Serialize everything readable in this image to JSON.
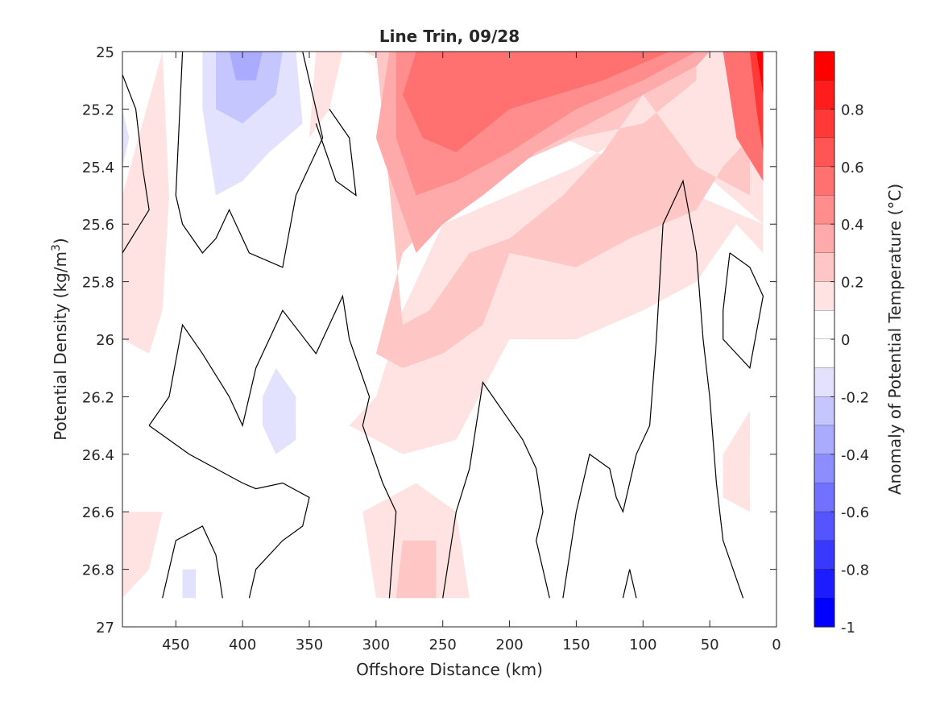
{
  "chart_data": {
    "type": "contour",
    "title": "Line Trin, 09/28",
    "xlabel": "Offshore Distance (km)",
    "ylabel": "Potential Density (kg/m",
    "ylabel_sup": "3",
    "ylabel_end": ")",
    "colorbar_label": "Anomaly of Potential Temperature (°C)",
    "x_direction": "reversed",
    "xlim": [
      0,
      490
    ],
    "ylim": [
      25,
      27
    ],
    "y_direction": "reversed",
    "x_ticks": [
      450,
      400,
      350,
      300,
      250,
      200,
      150,
      100,
      50,
      0
    ],
    "x_tick_labels": [
      "450",
      "400",
      "350",
      "300",
      "250",
      "200",
      "150",
      "100",
      "50",
      "0"
    ],
    "y_ticks": [
      25,
      25.2,
      25.4,
      25.6,
      25.8,
      26,
      26.2,
      26.4,
      26.6,
      26.8,
      27
    ],
    "y_tick_labels": [
      "25",
      "25.2",
      "25.4",
      "25.6",
      "25.8",
      "26",
      "26.2",
      "26.4",
      "26.6",
      "26.8",
      "27"
    ],
    "colorbar_range": [
      -1,
      1
    ],
    "colorbar_ticks": [
      0.8,
      0.6,
      0.4,
      0.2,
      0,
      -0.2,
      -0.4,
      -0.6,
      -0.8,
      -1
    ],
    "colorbar_tick_labels": [
      "0.8",
      "0.6",
      "0.4",
      "0.2",
      "0",
      "-0.2",
      "-0.4",
      "-0.6",
      "-0.8",
      "-1"
    ],
    "levels": [
      {
        "range": [
          0.9,
          1.0
        ],
        "color": "#ff0000"
      },
      {
        "range": [
          0.8,
          0.9
        ],
        "color": "#ff1c1c"
      },
      {
        "range": [
          0.7,
          0.8
        ],
        "color": "#ff3838"
      },
      {
        "range": [
          0.6,
          0.7
        ],
        "color": "#ff5555"
      },
      {
        "range": [
          0.5,
          0.6
        ],
        "color": "#ff7171"
      },
      {
        "range": [
          0.4,
          0.5
        ],
        "color": "#ff8d8d"
      },
      {
        "range": [
          0.3,
          0.4
        ],
        "color": "#ffaaaa"
      },
      {
        "range": [
          0.2,
          0.3
        ],
        "color": "#ffc6c6"
      },
      {
        "range": [
          0.1,
          0.2
        ],
        "color": "#ffe2e2"
      },
      {
        "range": [
          0.0,
          0.1
        ],
        "color": "#ffffff"
      },
      {
        "range": [
          -0.1,
          0.0
        ],
        "color": "#ffffff"
      },
      {
        "range": [
          -0.2,
          -0.1
        ],
        "color": "#e2e2ff"
      },
      {
        "range": [
          -0.3,
          -0.2
        ],
        "color": "#c6c6ff"
      },
      {
        "range": [
          -0.4,
          -0.3
        ],
        "color": "#aaaaff"
      },
      {
        "range": [
          -0.5,
          -0.4
        ],
        "color": "#8d8dff"
      },
      {
        "range": [
          -0.6,
          -0.5
        ],
        "color": "#7171ff"
      },
      {
        "range": [
          -0.7,
          -0.6
        ],
        "color": "#5555ff"
      },
      {
        "range": [
          -0.8,
          -0.7
        ],
        "color": "#3838ff"
      },
      {
        "range": [
          -0.9,
          -0.8
        ],
        "color": "#1c1cff"
      },
      {
        "range": [
          -1.0,
          -0.9
        ],
        "color": "#0000ff"
      }
    ],
    "filled_regions": [
      {
        "level": 0.15,
        "points": [
          [
            310,
            25
          ],
          [
            10,
            25
          ],
          [
            10,
            25.6
          ],
          [
            60,
            25.4
          ],
          [
            100,
            25.25
          ],
          [
            150,
            25.4
          ],
          [
            200,
            25.5
          ],
          [
            250,
            25.6
          ],
          [
            280,
            25.9
          ],
          [
            300,
            26.2
          ],
          [
            320,
            26.3
          ],
          [
            280,
            26.4
          ],
          [
            240,
            26.35
          ],
          [
            200,
            26
          ],
          [
            150,
            26
          ],
          [
            100,
            25.9
          ],
          [
            60,
            25.8
          ],
          [
            30,
            25.6
          ],
          [
            10,
            25.7
          ],
          [
            10,
            25.6
          ]
        ]
      },
      {
        "level": 0.15,
        "points": [
          [
            490,
            26.6
          ],
          [
            490,
            26.9
          ],
          [
            470,
            26.8
          ],
          [
            460,
            26.6
          ]
        ]
      },
      {
        "level": 0.15,
        "points": [
          [
            460,
            25
          ],
          [
            490,
            25.5
          ],
          [
            490,
            26
          ],
          [
            470,
            26.05
          ],
          [
            460,
            25.9
          ],
          [
            455,
            25.5
          ]
        ]
      },
      {
        "level": 0.15,
        "points": [
          [
            270,
            26.5
          ],
          [
            240,
            26.6
          ],
          [
            230,
            26.9
          ],
          [
            300,
            26.9
          ],
          [
            310,
            26.6
          ]
        ]
      },
      {
        "level": 0.15,
        "points": [
          [
            40,
            26.4
          ],
          [
            20,
            26.25
          ],
          [
            20,
            26.6
          ],
          [
            40,
            26.55
          ]
        ]
      },
      {
        "level": 0.15,
        "points": [
          [
            345,
            25
          ],
          [
            325,
            25
          ],
          [
            335,
            25.2
          ],
          [
            350,
            25.3
          ]
        ]
      },
      {
        "level": 0.25,
        "points": [
          [
            300,
            25
          ],
          [
            60,
            25
          ],
          [
            60,
            25.1
          ],
          [
            100,
            25.25
          ],
          [
            150,
            25.3
          ],
          [
            200,
            25.4
          ],
          [
            240,
            25.5
          ],
          [
            280,
            25.7
          ],
          [
            300,
            26.05
          ],
          [
            280,
            26.1
          ],
          [
            250,
            26.05
          ],
          [
            220,
            25.95
          ],
          [
            200,
            25.7
          ],
          [
            150,
            25.75
          ],
          [
            110,
            25.65
          ],
          [
            60,
            25.55
          ],
          [
            40,
            25.4
          ],
          [
            20,
            25.3
          ],
          [
            20,
            25.5
          ],
          [
            60,
            25.4
          ],
          [
            100,
            25.15
          ],
          [
            130,
            25.35
          ],
          [
            160,
            25.5
          ],
          [
            200,
            25.65
          ],
          [
            230,
            25.7
          ],
          [
            260,
            25.9
          ],
          [
            280,
            25.95
          ]
        ]
      },
      {
        "level": 0.25,
        "points": [
          [
            280,
            26.7
          ],
          [
            255,
            26.7
          ],
          [
            255,
            26.9
          ],
          [
            285,
            26.9
          ]
        ]
      },
      {
        "level": 0.35,
        "points": [
          [
            290,
            25
          ],
          [
            50,
            25
          ],
          [
            60,
            25.05
          ],
          [
            100,
            25.15
          ],
          [
            140,
            25.25
          ],
          [
            180,
            25.35
          ],
          [
            220,
            25.5
          ],
          [
            250,
            25.6
          ],
          [
            270,
            25.7
          ],
          [
            285,
            25.5
          ],
          [
            300,
            25.3
          ]
        ]
      },
      {
        "level": 0.45,
        "points": [
          [
            285,
            25
          ],
          [
            60,
            25
          ],
          [
            100,
            25.1
          ],
          [
            150,
            25.2
          ],
          [
            200,
            25.35
          ],
          [
            240,
            25.45
          ],
          [
            270,
            25.5
          ],
          [
            285,
            25.3
          ]
        ]
      },
      {
        "level": 0.55,
        "points": [
          [
            270,
            25
          ],
          [
            80,
            25
          ],
          [
            130,
            25.1
          ],
          [
            200,
            25.2
          ],
          [
            240,
            25.35
          ],
          [
            265,
            25.3
          ],
          [
            280,
            25.15
          ]
        ]
      },
      {
        "level": 0.55,
        "points": [
          [
            40,
            25
          ],
          [
            10,
            25
          ],
          [
            10,
            25.45
          ],
          [
            30,
            25.3
          ]
        ]
      },
      {
        "level": 0.75,
        "points": [
          [
            20,
            25
          ],
          [
            10,
            25
          ],
          [
            10,
            25.35
          ],
          [
            15,
            25.2
          ]
        ]
      },
      {
        "level": 0.95,
        "points": [
          [
            15,
            25
          ],
          [
            10,
            25
          ],
          [
            10,
            25.15
          ]
        ]
      },
      {
        "level": -0.15,
        "points": [
          [
            430,
            25
          ],
          [
            360,
            25
          ],
          [
            355,
            25.25
          ],
          [
            380,
            25.35
          ],
          [
            400,
            25.45
          ],
          [
            420,
            25.5
          ],
          [
            430,
            25.2
          ]
        ]
      },
      {
        "level": -0.15,
        "points": [
          [
            375,
            26.1
          ],
          [
            360,
            26.2
          ],
          [
            360,
            26.35
          ],
          [
            375,
            26.4
          ],
          [
            385,
            26.3
          ],
          [
            385,
            26.2
          ]
        ]
      },
      {
        "level": -0.15,
        "points": [
          [
            445,
            26.8
          ],
          [
            435,
            26.8
          ],
          [
            435,
            26.9
          ],
          [
            445,
            26.9
          ]
        ]
      },
      {
        "level": -0.15,
        "points": [
          [
            490,
            25.2
          ],
          [
            485,
            25.3
          ],
          [
            490,
            25.4
          ]
        ]
      },
      {
        "level": -0.25,
        "points": [
          [
            420,
            25
          ],
          [
            370,
            25
          ],
          [
            375,
            25.15
          ],
          [
            400,
            25.25
          ],
          [
            420,
            25.2
          ]
        ]
      },
      {
        "level": -0.35,
        "points": [
          [
            410,
            25
          ],
          [
            385,
            25
          ],
          [
            390,
            25.1
          ],
          [
            405,
            25.1
          ]
        ]
      }
    ],
    "zero_contours": [
      [
        [
          490,
          25.08
        ],
        [
          480,
          25.2
        ],
        [
          475,
          25.4
        ],
        [
          470,
          25.55
        ],
        [
          490,
          25.7
        ]
      ],
      [
        [
          445,
          25
        ],
        [
          450,
          25.5
        ],
        [
          445,
          25.6
        ],
        [
          430,
          25.7
        ],
        [
          420,
          25.65
        ],
        [
          410,
          25.55
        ],
        [
          395,
          25.7
        ],
        [
          370,
          25.75
        ],
        [
          360,
          25.5
        ],
        [
          340,
          25.3
        ],
        [
          350,
          25.1
        ],
        [
          355,
          25
        ]
      ],
      [
        [
          345,
          25.25
        ],
        [
          330,
          25.45
        ],
        [
          315,
          25.5
        ],
        [
          320,
          25.3
        ],
        [
          335,
          25.2
        ]
      ],
      [
        [
          470,
          26.3
        ],
        [
          455,
          26.2
        ],
        [
          445,
          25.95
        ],
        [
          430,
          26.05
        ],
        [
          410,
          26.2
        ],
        [
          400,
          26.3
        ],
        [
          390,
          26.1
        ],
        [
          370,
          25.9
        ],
        [
          345,
          26.05
        ],
        [
          325,
          25.85
        ],
        [
          320,
          26
        ],
        [
          305,
          26.2
        ],
        [
          310,
          26.3
        ],
        [
          295,
          26.5
        ],
        [
          285,
          26.6
        ],
        [
          290,
          26.9
        ]
      ],
      [
        [
          470,
          26.3
        ],
        [
          440,
          26.4
        ],
        [
          420,
          26.45
        ],
        [
          400,
          26.5
        ],
        [
          390,
          26.52
        ],
        [
          370,
          26.5
        ],
        [
          350,
          26.55
        ],
        [
          355,
          26.65
        ],
        [
          370,
          26.7
        ],
        [
          390,
          26.8
        ],
        [
          395,
          26.9
        ]
      ],
      [
        [
          460,
          26.9
        ],
        [
          450,
          26.7
        ],
        [
          430,
          26.65
        ],
        [
          420,
          26.75
        ],
        [
          415,
          26.9
        ]
      ],
      [
        [
          250,
          26.9
        ],
        [
          240,
          26.6
        ],
        [
          230,
          26.45
        ],
        [
          220,
          26.15
        ],
        [
          205,
          26.25
        ],
        [
          190,
          26.35
        ],
        [
          180,
          26.45
        ],
        [
          175,
          26.6
        ],
        [
          180,
          26.7
        ],
        [
          170,
          26.9
        ]
      ],
      [
        [
          160,
          26.9
        ],
        [
          150,
          26.6
        ],
        [
          140,
          26.4
        ],
        [
          125,
          26.45
        ],
        [
          120,
          26.55
        ],
        [
          115,
          26.6
        ],
        [
          110,
          26.5
        ],
        [
          105,
          26.4
        ],
        [
          95,
          26.3
        ],
        [
          90,
          26
        ],
        [
          85,
          25.6
        ],
        [
          70,
          25.45
        ],
        [
          60,
          25.7
        ],
        [
          55,
          26
        ],
        [
          50,
          26.2
        ],
        [
          45,
          26.5
        ],
        [
          40,
          26.7
        ],
        [
          25,
          26.9
        ]
      ],
      [
        [
          115,
          26.9
        ],
        [
          110,
          26.8
        ],
        [
          105,
          26.9
        ]
      ],
      [
        [
          35,
          25.7
        ],
        [
          40,
          25.9
        ],
        [
          40,
          26
        ],
        [
          30,
          26.05
        ],
        [
          20,
          26.1
        ],
        [
          10,
          25.85
        ],
        [
          20,
          25.75
        ],
        [
          35,
          25.7
        ]
      ]
    ]
  }
}
